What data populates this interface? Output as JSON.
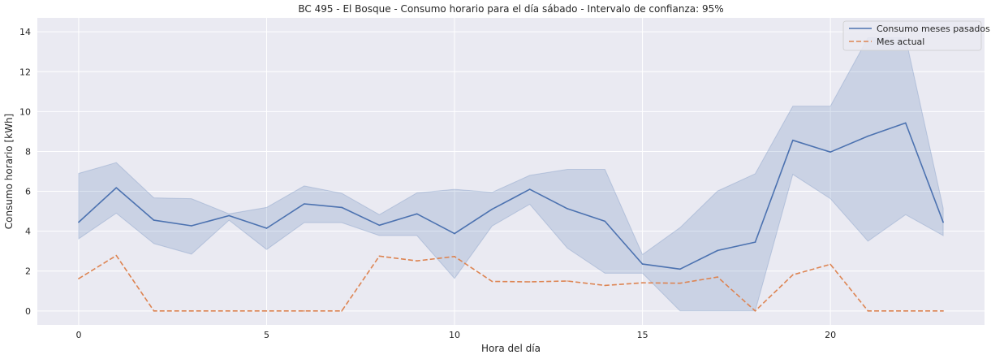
{
  "chart_data": {
    "type": "line",
    "title": "BC 495 - El Bosque - Consumo horario para el día sábado - Intervalo de confianza: 95%",
    "xlabel": "Hora del día",
    "ylabel": "Consumo horario [kWh]",
    "xlim": [
      -1.1,
      24.1
    ],
    "ylim": [
      -0.7,
      14.7
    ],
    "grid": true,
    "legend_position": "top-right",
    "x": [
      0,
      1,
      2,
      3,
      4,
      5,
      6,
      7,
      8,
      9,
      10,
      11,
      12,
      13,
      14,
      15,
      16,
      17,
      18,
      19,
      20,
      21,
      22,
      23
    ],
    "x_ticks": [
      0,
      5,
      10,
      15,
      20
    ],
    "x_tick_labels": [
      "0",
      "5",
      "10",
      "15",
      "20"
    ],
    "y_ticks": [
      0,
      2,
      4,
      6,
      8,
      10,
      12,
      14
    ],
    "y_tick_labels": [
      "0",
      "2",
      "4",
      "6",
      "8",
      "10",
      "12",
      "14"
    ],
    "series": [
      {
        "name": "Consumo meses pasados",
        "style": "solid",
        "color": "#4c72b0",
        "values": [
          4.45,
          6.18,
          4.55,
          4.27,
          4.78,
          4.15,
          5.37,
          5.19,
          4.3,
          4.87,
          3.88,
          5.1,
          6.1,
          5.13,
          4.5,
          2.35,
          2.1,
          3.03,
          3.45,
          8.56,
          7.97,
          8.77,
          9.43,
          4.45
        ],
        "ci_lower": [
          3.62,
          4.9,
          3.38,
          2.85,
          4.55,
          3.08,
          4.43,
          4.43,
          3.78,
          3.78,
          1.63,
          4.26,
          5.35,
          3.15,
          1.89,
          1.89,
          0.0,
          0.0,
          0.0,
          6.85,
          5.63,
          3.5,
          4.83,
          3.78
        ],
        "ci_upper": [
          6.9,
          7.44,
          5.67,
          5.63,
          4.87,
          5.19,
          6.27,
          5.9,
          4.83,
          5.92,
          6.1,
          5.95,
          6.8,
          7.1,
          7.1,
          2.83,
          4.18,
          6.02,
          6.88,
          10.27,
          10.27,
          13.7,
          13.7,
          5.15
        ]
      },
      {
        "name": "Mes actual",
        "style": "dashed",
        "color": "#dd8452",
        "values": [
          1.62,
          2.78,
          0.0,
          0.0,
          0.0,
          0.0,
          0.0,
          0.0,
          2.75,
          2.51,
          2.73,
          1.48,
          1.46,
          1.5,
          1.28,
          1.41,
          1.39,
          1.7,
          0.0,
          1.81,
          2.34,
          0.0,
          0.0,
          0.0
        ]
      }
    ]
  },
  "colors": {
    "axes_background": "#eaeaf2",
    "grid": "#ffffff",
    "ci_fill": "#4c72b0"
  }
}
